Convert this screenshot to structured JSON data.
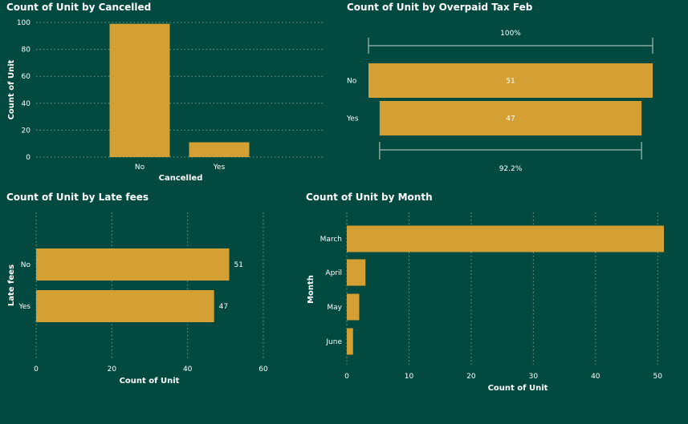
{
  "colors": {
    "background": "#024a40",
    "bar": "#d4a033",
    "text": "#ffffff",
    "grid": "#8fb3aa"
  },
  "chart_data": [
    {
      "type": "bar",
      "orientation": "vertical",
      "title": "Count of Unit by Cancelled",
      "xlabel": "Cancelled",
      "ylabel": "Count of Unit",
      "categories": [
        "No",
        "Yes"
      ],
      "values": [
        99,
        11
      ],
      "ylim": [
        0,
        100
      ],
      "yticks": [
        0,
        20,
        40,
        60,
        80,
        100
      ],
      "grid": true
    },
    {
      "type": "bar",
      "orientation": "horizontal",
      "subtype": "funnel",
      "title": "Count of Unit by Overpaid Tax Feb",
      "categories": [
        "No",
        "Yes"
      ],
      "values": [
        51,
        47
      ],
      "data_labels": [
        "51",
        "47"
      ],
      "top_annotation": "100%",
      "bottom_annotation": "92.2%"
    },
    {
      "type": "bar",
      "orientation": "horizontal",
      "title": "Count of Unit by Late fees",
      "xlabel": "Count of Unit",
      "ylabel": "Late fees",
      "categories": [
        "No",
        "Yes"
      ],
      "values": [
        51,
        47
      ],
      "data_labels": [
        "51",
        "47"
      ],
      "xlim": [
        0,
        60
      ],
      "xticks": [
        0,
        20,
        40,
        60
      ],
      "grid": true
    },
    {
      "type": "bar",
      "orientation": "horizontal",
      "title": "Count of Unit by Month",
      "xlabel": "Count of Unit",
      "ylabel": "Month",
      "categories": [
        "March",
        "April",
        "May",
        "June"
      ],
      "values": [
        51,
        3,
        2,
        1
      ],
      "xlim": [
        0,
        51
      ],
      "xticks": [
        0,
        10,
        20,
        30,
        40,
        50
      ],
      "grid": true
    }
  ]
}
